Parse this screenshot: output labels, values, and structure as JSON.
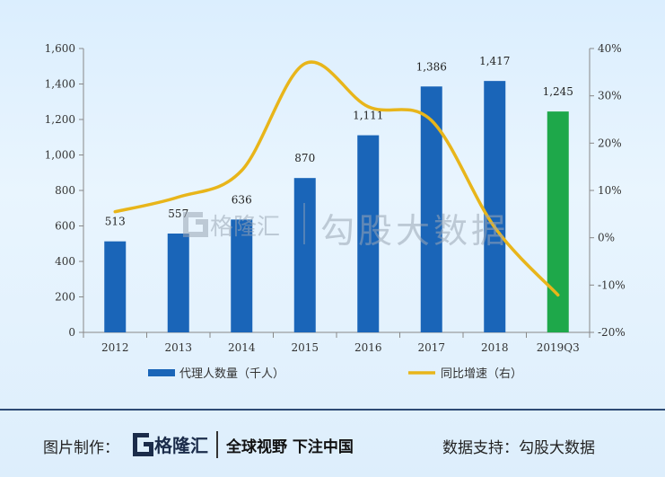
{
  "chart_data": {
    "type": "bar",
    "categories": [
      "2012",
      "2013",
      "2014",
      "2015",
      "2016",
      "2017",
      "2018",
      "2019Q3"
    ],
    "series": [
      {
        "name": "代理人数量（千人）",
        "type": "bar",
        "axis": "left",
        "values": [
          513,
          557,
          636,
          870,
          1111,
          1386,
          1417,
          1245
        ],
        "labels": [
          "513",
          "557",
          "636",
          "870",
          "1,111",
          "1,386",
          "1,417",
          "1,245"
        ],
        "color": "#1a65b8",
        "highlight_color": "#1ea84a",
        "highlight_index": 7
      },
      {
        "name": "同比增速（右）",
        "type": "line",
        "axis": "right",
        "values": [
          5.5,
          8.6,
          14.2,
          36.8,
          27.7,
          24.8,
          2.2,
          -12.1
        ],
        "color": "#e8b51a"
      }
    ],
    "y_left": {
      "ylim": [
        0,
        1600
      ],
      "ticks": [
        "0",
        "200",
        "400",
        "600",
        "800",
        "1,000",
        "1,200",
        "1,400",
        "1,600"
      ]
    },
    "y_right": {
      "ylim": [
        -20,
        40
      ],
      "ticks": [
        "-20%",
        "-10%",
        "0%",
        "10%",
        "20%",
        "30%",
        "40%"
      ]
    },
    "legend_position": "bottom",
    "grid": false
  },
  "watermark": {
    "logo_text": "格隆汇",
    "text": "勾股大数据"
  },
  "footer": {
    "made_by_label": "图片制作：",
    "logo_text": "格隆汇",
    "slogan": "全球视野 下注中国",
    "support_label": "数据支持：",
    "support_name": "勾股大数据"
  },
  "colors": {
    "bar": "#1a65b8",
    "bar_highlight": "#1ea84a",
    "line": "#e8b51a",
    "footer_rule": "#2d4a74"
  }
}
